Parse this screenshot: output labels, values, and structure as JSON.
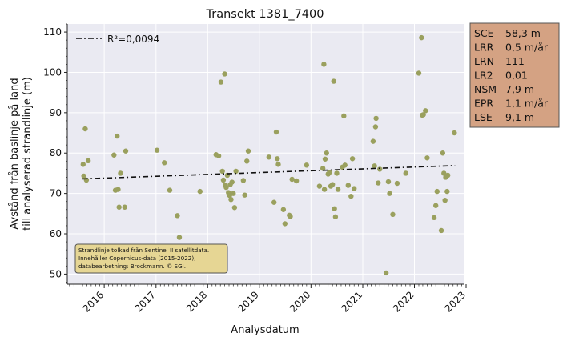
{
  "chart_data": {
    "type": "scatter",
    "title": "Transekt 1381_7400",
    "xlabel": "Analysdatum",
    "ylabel": [
      "Avstånd från baslinje på land",
      "till analyserad strandlinje (m)"
    ],
    "xlim": [
      "2015-04-15",
      "2022-12-15"
    ],
    "ylim": [
      47.5,
      112
    ],
    "x_ticks": [
      "2016",
      "2017",
      "2018",
      "2019",
      "2020",
      "2021",
      "2022",
      "2023"
    ],
    "y_ticks": [
      50,
      60,
      70,
      80,
      90,
      100,
      110
    ],
    "grid": true,
    "point_color": "#9aa05e",
    "points": [
      {
        "x": "2015-08-05",
        "y": 77.2
      },
      {
        "x": "2015-08-10",
        "y": 74.3
      },
      {
        "x": "2015-08-20",
        "y": 86.0
      },
      {
        "x": "2015-08-28",
        "y": 73.3
      },
      {
        "x": "2015-09-10",
        "y": 78.1
      },
      {
        "x": "2016-03-10",
        "y": 79.5
      },
      {
        "x": "2016-03-20",
        "y": 70.8
      },
      {
        "x": "2016-04-01",
        "y": 84.2
      },
      {
        "x": "2016-04-08",
        "y": 71.0
      },
      {
        "x": "2016-04-15",
        "y": 66.6
      },
      {
        "x": "2016-04-25",
        "y": 75.0
      },
      {
        "x": "2016-05-25",
        "y": 66.6
      },
      {
        "x": "2016-06-01",
        "y": 80.5
      },
      {
        "x": "2017-01-08",
        "y": 80.7
      },
      {
        "x": "2017-03-01",
        "y": 77.6
      },
      {
        "x": "2017-04-08",
        "y": 70.8
      },
      {
        "x": "2017-06-01",
        "y": 64.5
      },
      {
        "x": "2017-06-15",
        "y": 59.1
      },
      {
        "x": "2017-11-08",
        "y": 70.5
      },
      {
        "x": "2018-03-01",
        "y": 79.6
      },
      {
        "x": "2018-03-20",
        "y": 79.3
      },
      {
        "x": "2018-04-05",
        "y": 97.6
      },
      {
        "x": "2018-04-15",
        "y": 75.5
      },
      {
        "x": "2018-04-22",
        "y": 73.3
      },
      {
        "x": "2018-05-01",
        "y": 99.6
      },
      {
        "x": "2018-05-05",
        "y": 72.0
      },
      {
        "x": "2018-05-12",
        "y": 71.5
      },
      {
        "x": "2018-05-20",
        "y": 74.5
      },
      {
        "x": "2018-05-28",
        "y": 70.2
      },
      {
        "x": "2018-06-05",
        "y": 69.5
      },
      {
        "x": "2018-06-10",
        "y": 72.2
      },
      {
        "x": "2018-06-15",
        "y": 68.5
      },
      {
        "x": "2018-06-22",
        "y": 72.8
      },
      {
        "x": "2018-07-01",
        "y": 70.0
      },
      {
        "x": "2018-07-10",
        "y": 66.5
      },
      {
        "x": "2018-07-20",
        "y": 75.5
      },
      {
        "x": "2018-09-10",
        "y": 73.2
      },
      {
        "x": "2018-09-20",
        "y": 69.6
      },
      {
        "x": "2018-10-15",
        "y": 80.5
      },
      {
        "x": "2018-10-05",
        "y": 78.0
      },
      {
        "x": "2019-03-10",
        "y": 79.0
      },
      {
        "x": "2019-04-15",
        "y": 67.8
      },
      {
        "x": "2019-05-01",
        "y": 85.2
      },
      {
        "x": "2019-05-08",
        "y": 78.6
      },
      {
        "x": "2019-05-15",
        "y": 77.2
      },
      {
        "x": "2019-06-20",
        "y": 66.0
      },
      {
        "x": "2019-07-01",
        "y": 62.5
      },
      {
        "x": "2019-08-01",
        "y": 64.6
      },
      {
        "x": "2019-08-08",
        "y": 64.3
      },
      {
        "x": "2019-08-20",
        "y": 73.5
      },
      {
        "x": "2019-09-20",
        "y": 73.1
      },
      {
        "x": "2019-12-01",
        "y": 77.0
      },
      {
        "x": "2020-03-01",
        "y": 71.8
      },
      {
        "x": "2020-03-25",
        "y": 76.2
      },
      {
        "x": "2020-04-01",
        "y": 102.0
      },
      {
        "x": "2020-04-05",
        "y": 71.0
      },
      {
        "x": "2020-04-10",
        "y": 78.5
      },
      {
        "x": "2020-04-20",
        "y": 80.0
      },
      {
        "x": "2020-05-01",
        "y": 74.8
      },
      {
        "x": "2020-05-10",
        "y": 75.2
      },
      {
        "x": "2020-05-20",
        "y": 71.8
      },
      {
        "x": "2020-06-01",
        "y": 72.2
      },
      {
        "x": "2020-06-10",
        "y": 97.8
      },
      {
        "x": "2020-06-15",
        "y": 66.2
      },
      {
        "x": "2020-06-22",
        "y": 64.2
      },
      {
        "x": "2020-07-01",
        "y": 75.0
      },
      {
        "x": "2020-07-10",
        "y": 71.0
      },
      {
        "x": "2020-08-10",
        "y": 76.5
      },
      {
        "x": "2020-08-20",
        "y": 89.2
      },
      {
        "x": "2020-08-28",
        "y": 77.0
      },
      {
        "x": "2020-09-20",
        "y": 72.0
      },
      {
        "x": "2020-10-10",
        "y": 69.3
      },
      {
        "x": "2020-10-20",
        "y": 78.6
      },
      {
        "x": "2020-11-01",
        "y": 71.2
      },
      {
        "x": "2021-03-15",
        "y": 82.9
      },
      {
        "x": "2021-03-25",
        "y": 76.8
      },
      {
        "x": "2021-04-01",
        "y": 86.5
      },
      {
        "x": "2021-04-05",
        "y": 88.6
      },
      {
        "x": "2021-04-20",
        "y": 72.6
      },
      {
        "x": "2021-05-01",
        "y": 76.0
      },
      {
        "x": "2021-06-15",
        "y": 50.3
      },
      {
        "x": "2021-07-01",
        "y": 72.9
      },
      {
        "x": "2021-07-10",
        "y": 70.0
      },
      {
        "x": "2021-08-01",
        "y": 64.8
      },
      {
        "x": "2021-09-01",
        "y": 72.5
      },
      {
        "x": "2021-11-01",
        "y": 75.0
      },
      {
        "x": "2022-02-01",
        "y": 99.8
      },
      {
        "x": "2022-02-20",
        "y": 108.6
      },
      {
        "x": "2022-02-25",
        "y": 89.4
      },
      {
        "x": "2022-03-05",
        "y": 89.5
      },
      {
        "x": "2022-03-20",
        "y": 90.5
      },
      {
        "x": "2022-04-01",
        "y": 78.8
      },
      {
        "x": "2022-05-20",
        "y": 64.0
      },
      {
        "x": "2022-06-01",
        "y": 67.0
      },
      {
        "x": "2022-06-10",
        "y": 70.5
      },
      {
        "x": "2022-07-10",
        "y": 60.8
      },
      {
        "x": "2022-07-20",
        "y": 80.0
      },
      {
        "x": "2022-07-28",
        "y": 75.0
      },
      {
        "x": "2022-08-05",
        "y": 68.3
      },
      {
        "x": "2022-08-10",
        "y": 74.0
      },
      {
        "x": "2022-08-20",
        "y": 70.5
      },
      {
        "x": "2022-08-25",
        "y": 74.5
      },
      {
        "x": "2022-10-10",
        "y": 85.0
      }
    ],
    "trendline": {
      "label": "R²=0,0094",
      "x": [
        "2015-08-01",
        "2022-10-15"
      ],
      "y": [
        73.6,
        76.9
      ],
      "style": "dash-dot",
      "color": "#111111"
    },
    "legend_position": "top-left",
    "note": [
      "Strandlinje tolkad från Sentinel II satellitdata.",
      "Innehåller Copernicus-data (2015-2022),",
      "databearbetning: Brockmann. © SGI."
    ],
    "stats": [
      {
        "key": "SCE",
        "value": "58,3 m"
      },
      {
        "key": "LRR",
        "value": "0,5 m/år"
      },
      {
        "key": "LRN",
        "value": "111"
      },
      {
        "key": "LR2",
        "value": "0,01"
      },
      {
        "key": "NSM",
        "value": "7,9 m"
      },
      {
        "key": "EPR",
        "value": "1,1 m/år"
      },
      {
        "key": "LSE",
        "value": "9,1 m"
      }
    ],
    "colors": {
      "plot_bg": "#eaeaf2",
      "grid": "#ffffff",
      "note_bg": "#e6d694",
      "stats_bg": "#d4a283"
    }
  }
}
